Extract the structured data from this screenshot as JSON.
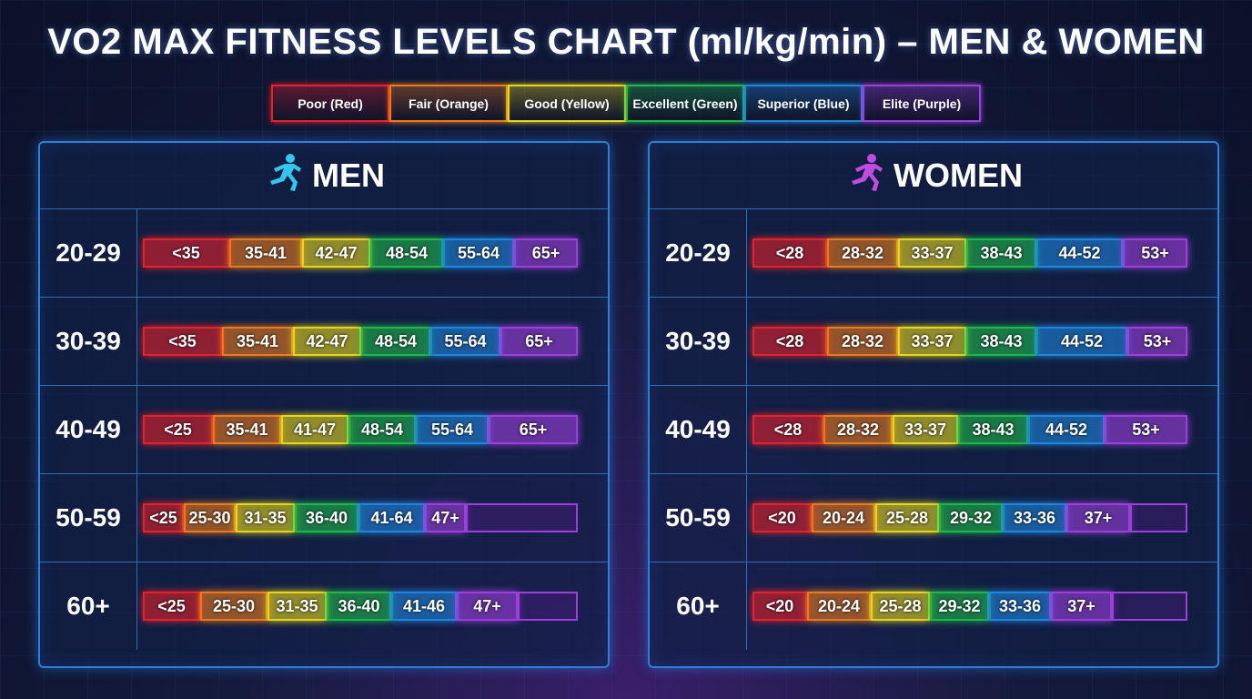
{
  "title": "VO2 MAX FITNESS LEVELS CHART (ml/kg/min) – MEN & WOMEN",
  "legend": [
    {
      "label": "Poor (Red)",
      "color": "#e3222c"
    },
    {
      "label": "Fair (Orange)",
      "color": "#ea7a1c"
    },
    {
      "label": "Good (Yellow)",
      "color": "#e6d51c"
    },
    {
      "label": "Excellent (Green)",
      "color": "#1fb84a"
    },
    {
      "label": "Superior (Blue)",
      "color": "#1f86dc"
    },
    {
      "label": "Elite (Purple)",
      "color": "#9d3fdc"
    }
  ],
  "panels": [
    {
      "title": "MEN",
      "rows": [
        {
          "age": "20-29",
          "ranges": [
            "<35",
            "35-41",
            "42-47",
            "48-54",
            "55-64",
            "65+"
          ]
        },
        {
          "age": "30-39",
          "ranges": [
            "<35",
            "35-41",
            "42-47",
            "48-54",
            "55-64",
            "65+"
          ]
        },
        {
          "age": "40-49",
          "ranges": [
            "<25",
            "35-41",
            "41-47",
            "48-54",
            "55-64",
            "65+"
          ]
        },
        {
          "age": "50-59",
          "ranges": [
            "<25",
            "25-30",
            "31-35",
            "36-40",
            "41-64",
            "47+"
          ]
        },
        {
          "age": "60+",
          "ranges": [
            "<25",
            "25-30",
            "31-35",
            "36-40",
            "41-46",
            "47+"
          ]
        }
      ]
    },
    {
      "title": "WOMEN",
      "rows": [
        {
          "age": "20-29",
          "ranges": [
            "<28",
            "28-32",
            "33-37",
            "38-43",
            "44-52",
            "53+"
          ]
        },
        {
          "age": "30-39",
          "ranges": [
            "<28",
            "28-32",
            "33-37",
            "38-43",
            "44-52",
            "53+"
          ]
        },
        {
          "age": "40-49",
          "ranges": [
            "<28",
            "28-32",
            "33-37",
            "38-43",
            "44-52",
            "53+"
          ]
        },
        {
          "age": "50-59",
          "ranges": [
            "<20",
            "20-24",
            "25-28",
            "29-32",
            "33-36",
            "37+"
          ]
        },
        {
          "age": "60+",
          "ranges": [
            "<20",
            "20-24",
            "25-28",
            "29-32",
            "33-36",
            "37+"
          ]
        }
      ]
    }
  ]
}
